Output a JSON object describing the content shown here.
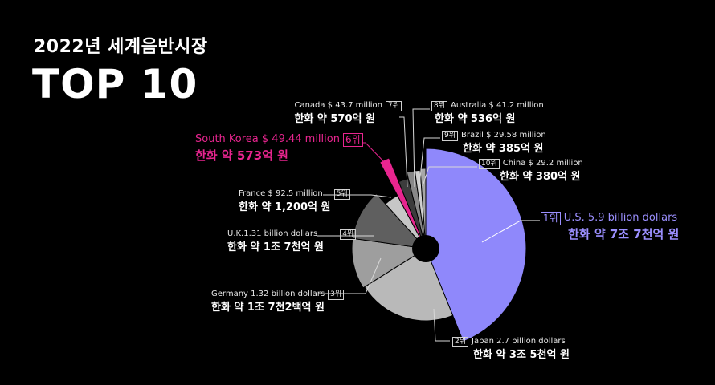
{
  "header": {
    "subtitle": "2022년 세계음반시장",
    "title": "TOP 10"
  },
  "chart_data": {
    "type": "pie",
    "title": "TOP 10",
    "subtitle": "2022년 세계음반시장",
    "slices": [
      {
        "rank": "1위",
        "country": "U.S.",
        "value_usd_m": 5900,
        "label": "U.S. 5.9 billion dollars",
        "krw": "한화 약 7조 7천억 원",
        "color": "#8f88fb"
      },
      {
        "rank": "2위",
        "country": "Japan",
        "value_usd_m": 2700,
        "label": "Japan 2.7 billion dollars",
        "krw": "한화 약 3조 5천억 원",
        "color": "#b9b9b9"
      },
      {
        "rank": "3위",
        "country": "Germany",
        "value_usd_m": 1320,
        "label": "Germany 1.32 billion dollars",
        "krw": "한화 약 1조 7천2백억 원",
        "color": "#9e9e9e"
      },
      {
        "rank": "4위",
        "country": "U.K.",
        "value_usd_m": 1310,
        "label": "U.K.1.31 billion dollars",
        "krw": "한화 약 1조 7천억 원",
        "color": "#5f5f5f"
      },
      {
        "rank": "5위",
        "country": "France",
        "value_usd_m": 92.5,
        "label": "France $ 92.5 million",
        "krw": "한화 약 1,200억 원",
        "color": "#c6c6c6"
      },
      {
        "rank": "6위",
        "country": "South Korea",
        "value_usd_m": 49.44,
        "label": "South Korea $ 49.44 million",
        "krw": "한화 약 573억 원",
        "color": "#e8258f"
      },
      {
        "rank": "7위",
        "country": "Canada",
        "value_usd_m": 43.7,
        "label": "Canada $ 43.7 million",
        "krw": "한화 약 570억 원",
        "color": "#3c3c3c"
      },
      {
        "rank": "8위",
        "country": "Australia",
        "value_usd_m": 41.2,
        "label": "Australia $ 41.2 million",
        "krw": "한화 약 536억 원",
        "color": "#888888"
      },
      {
        "rank": "9위",
        "country": "Brazil",
        "value_usd_m": 29.58,
        "label": "Brazil $ 29.58 million",
        "krw": "한화 약 385억 원",
        "color": "#d0d0d0"
      },
      {
        "rank": "10위",
        "country": "China",
        "value_usd_m": 29.2,
        "label": "China $ 29.2 million",
        "krw": "한화 약 380억 원",
        "color": "#a7a7a7"
      }
    ]
  }
}
